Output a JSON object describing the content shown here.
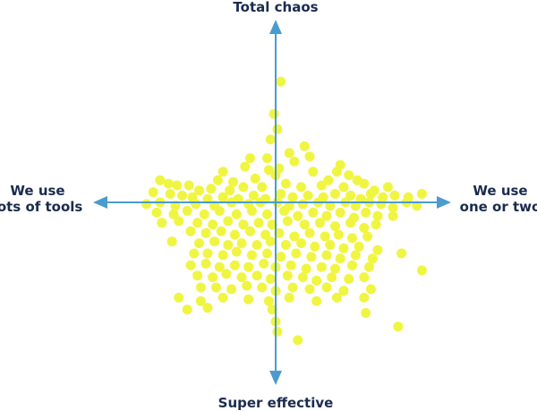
{
  "chart_data": {
    "type": "scatter",
    "title": "",
    "axis_labels": {
      "top": "Total chaos",
      "bottom": "Super effective",
      "left": [
        "We use",
        "lots of tools"
      ],
      "right": [
        "We use",
        "one or two"
      ]
    },
    "colors": {
      "axis": "#4a9bd0",
      "points": "#f0f542",
      "label_text": "#1a2c4e"
    },
    "xlim": [
      -1,
      1
    ],
    "ylim": [
      -1,
      1
    ],
    "grid": false,
    "legend": "none",
    "points": [
      [
        0.03,
        0.71
      ],
      [
        -0.01,
        0.52
      ],
      [
        0.01,
        0.43
      ],
      [
        -0.03,
        0.37
      ],
      [
        -0.05,
        0.26
      ],
      [
        0.08,
        0.29
      ],
      [
        0.17,
        0.33
      ],
      [
        -0.15,
        0.26
      ],
      [
        0.2,
        0.27
      ],
      [
        -0.18,
        0.21
      ],
      [
        0.0,
        0.16
      ],
      [
        0.02,
        0.2
      ],
      [
        -0.04,
        0.19
      ],
      [
        0.11,
        0.24
      ],
      [
        0.22,
        0.18
      ],
      [
        0.38,
        0.22
      ],
      [
        0.43,
        0.16
      ],
      [
        -0.31,
        0.18
      ],
      [
        -0.34,
        0.13
      ],
      [
        -0.25,
        0.12
      ],
      [
        -0.12,
        0.14
      ],
      [
        0.31,
        0.13
      ],
      [
        0.48,
        0.13
      ],
      [
        0.36,
        0.18
      ],
      [
        -0.68,
        0.13
      ],
      [
        -0.63,
        0.11
      ],
      [
        -0.58,
        0.1
      ],
      [
        -0.51,
        0.1
      ],
      [
        -0.45,
        0.07
      ],
      [
        -0.38,
        0.08
      ],
      [
        -0.27,
        0.07
      ],
      [
        -0.19,
        0.09
      ],
      [
        -0.08,
        0.09
      ],
      [
        0.06,
        0.11
      ],
      [
        0.15,
        0.09
      ],
      [
        0.27,
        0.1
      ],
      [
        0.4,
        0.09
      ],
      [
        0.52,
        0.11
      ],
      [
        0.58,
        0.07
      ],
      [
        0.66,
        0.09
      ],
      [
        -0.72,
        0.06
      ],
      [
        -0.62,
        0.05
      ],
      [
        -0.55,
        0.04
      ],
      [
        -0.49,
        0.03
      ],
      [
        -0.4,
        0.02
      ],
      [
        -0.31,
        0.03
      ],
      [
        -0.22,
        0.02
      ],
      [
        -0.13,
        0.04
      ],
      [
        -0.06,
        0.02
      ],
      [
        0.03,
        0.05
      ],
      [
        0.1,
        0.03
      ],
      [
        0.19,
        0.04
      ],
      [
        0.28,
        0.03
      ],
      [
        0.35,
        0.05
      ],
      [
        0.44,
        0.04
      ],
      [
        0.5,
        0.02
      ],
      [
        0.56,
        0.05
      ],
      [
        0.63,
        0.03
      ],
      [
        0.7,
        0.04
      ],
      [
        0.78,
        0.03
      ],
      [
        -0.76,
        -0.01
      ],
      [
        -0.68,
        0.0
      ],
      [
        -0.59,
        -0.02
      ],
      [
        -0.47,
        -0.01
      ],
      [
        -0.36,
        -0.02
      ],
      [
        -0.26,
        0.0
      ],
      [
        -0.16,
        -0.01
      ],
      [
        -0.09,
        0.0
      ],
      [
        0.01,
        0.0
      ],
      [
        0.08,
        -0.02
      ],
      [
        0.16,
        -0.01
      ],
      [
        0.25,
        0.0
      ],
      [
        0.32,
        -0.02
      ],
      [
        0.41,
        0.0
      ],
      [
        0.47,
        -0.02
      ],
      [
        0.55,
        0.0
      ],
      [
        0.62,
        -0.01
      ],
      [
        0.69,
        -0.03
      ],
      [
        0.77,
        0.0
      ],
      [
        0.83,
        -0.02
      ],
      [
        0.86,
        0.05
      ],
      [
        -0.7,
        -0.06
      ],
      [
        -0.6,
        -0.07
      ],
      [
        -0.52,
        -0.05
      ],
      [
        -0.42,
        -0.07
      ],
      [
        -0.33,
        -0.05
      ],
      [
        -0.23,
        -0.07
      ],
      [
        -0.14,
        -0.05
      ],
      [
        -0.05,
        -0.07
      ],
      [
        0.05,
        -0.05
      ],
      [
        0.13,
        -0.08
      ],
      [
        0.22,
        -0.06
      ],
      [
        0.3,
        -0.08
      ],
      [
        0.38,
        -0.06
      ],
      [
        0.46,
        -0.09
      ],
      [
        0.53,
        -0.06
      ],
      [
        0.6,
        -0.08
      ],
      [
        0.69,
        -0.08
      ],
      [
        -0.67,
        -0.12
      ],
      [
        -0.57,
        -0.11
      ],
      [
        -0.46,
        -0.12
      ],
      [
        -0.37,
        -0.13
      ],
      [
        -0.28,
        -0.11
      ],
      [
        -0.19,
        -0.13
      ],
      [
        -0.1,
        -0.12
      ],
      [
        -0.02,
        -0.13
      ],
      [
        0.07,
        -0.11
      ],
      [
        0.17,
        -0.13
      ],
      [
        0.26,
        -0.12
      ],
      [
        0.35,
        -0.14
      ],
      [
        0.44,
        -0.12
      ],
      [
        0.52,
        -0.15
      ],
      [
        0.59,
        -0.13
      ],
      [
        -0.5,
        -0.17
      ],
      [
        -0.41,
        -0.18
      ],
      [
        -0.32,
        -0.17
      ],
      [
        -0.24,
        -0.19
      ],
      [
        -0.15,
        -0.17
      ],
      [
        -0.06,
        -0.19
      ],
      [
        0.02,
        -0.18
      ],
      [
        0.11,
        -0.2
      ],
      [
        0.2,
        -0.18
      ],
      [
        0.29,
        -0.2
      ],
      [
        0.37,
        -0.19
      ],
      [
        0.45,
        -0.21
      ],
      [
        0.54,
        -0.2
      ],
      [
        -0.61,
        -0.23
      ],
      [
        -0.45,
        -0.24
      ],
      [
        -0.36,
        -0.23
      ],
      [
        -0.28,
        -0.25
      ],
      [
        -0.2,
        -0.24
      ],
      [
        -0.11,
        -0.25
      ],
      [
        -0.03,
        -0.23
      ],
      [
        0.06,
        -0.25
      ],
      [
        0.15,
        -0.24
      ],
      [
        0.23,
        -0.26
      ],
      [
        0.32,
        -0.25
      ],
      [
        0.4,
        -0.27
      ],
      [
        0.49,
        -0.26
      ],
      [
        0.6,
        -0.28
      ],
      [
        -0.48,
        -0.3
      ],
      [
        -0.4,
        -0.3
      ],
      [
        -0.31,
        -0.31
      ],
      [
        -0.23,
        -0.29
      ],
      [
        -0.14,
        -0.31
      ],
      [
        -0.05,
        -0.3
      ],
      [
        0.03,
        -0.32
      ],
      [
        0.12,
        -0.3
      ],
      [
        0.21,
        -0.32
      ],
      [
        0.3,
        -0.31
      ],
      [
        0.38,
        -0.33
      ],
      [
        0.47,
        -0.31
      ],
      [
        0.57,
        -0.33
      ],
      [
        0.74,
        -0.3
      ],
      [
        -0.5,
        -0.37
      ],
      [
        -0.41,
        -0.36
      ],
      [
        -0.33,
        -0.38
      ],
      [
        -0.24,
        -0.37
      ],
      [
        -0.16,
        -0.38
      ],
      [
        -0.07,
        -0.36
      ],
      [
        0.0,
        -0.38
      ],
      [
        0.09,
        -0.37
      ],
      [
        0.18,
        -0.39
      ],
      [
        0.27,
        -0.38
      ],
      [
        0.35,
        -0.39
      ],
      [
        0.45,
        -0.37
      ],
      [
        0.55,
        -0.38
      ],
      [
        -0.46,
        -0.43
      ],
      [
        -0.37,
        -0.44
      ],
      [
        -0.29,
        -0.42
      ],
      [
        -0.2,
        -0.44
      ],
      [
        -0.11,
        -0.43
      ],
      [
        -0.03,
        -0.45
      ],
      [
        0.07,
        -0.43
      ],
      [
        0.16,
        -0.44
      ],
      [
        0.24,
        -0.46
      ],
      [
        0.33,
        -0.44
      ],
      [
        0.43,
        -0.45
      ],
      [
        0.52,
        -0.44
      ],
      [
        0.86,
        -0.4
      ],
      [
        -0.44,
        -0.5
      ],
      [
        -0.35,
        -0.5
      ],
      [
        -0.26,
        -0.51
      ],
      [
        -0.17,
        -0.49
      ],
      [
        -0.08,
        -0.5
      ],
      [
        0.0,
        -0.52
      ],
      [
        0.1,
        -0.5
      ],
      [
        0.2,
        -0.51
      ],
      [
        0.3,
        -0.5
      ],
      [
        0.4,
        -0.52
      ],
      [
        0.56,
        -0.51
      ],
      [
        0.52,
        -0.56
      ],
      [
        -0.57,
        -0.56
      ],
      [
        -0.44,
        -0.58
      ],
      [
        -0.31,
        -0.56
      ],
      [
        -0.16,
        -0.57
      ],
      [
        -0.04,
        -0.58
      ],
      [
        0.08,
        -0.56
      ],
      [
        0.24,
        -0.58
      ],
      [
        0.36,
        -0.56
      ],
      [
        -0.52,
        -0.63
      ],
      [
        -0.4,
        -0.62
      ],
      [
        -0.02,
        -0.63
      ],
      [
        0.0,
        -0.7
      ],
      [
        0.01,
        -0.76
      ],
      [
        0.13,
        -0.81
      ],
      [
        0.53,
        -0.65
      ],
      [
        0.72,
        -0.73
      ]
    ]
  }
}
